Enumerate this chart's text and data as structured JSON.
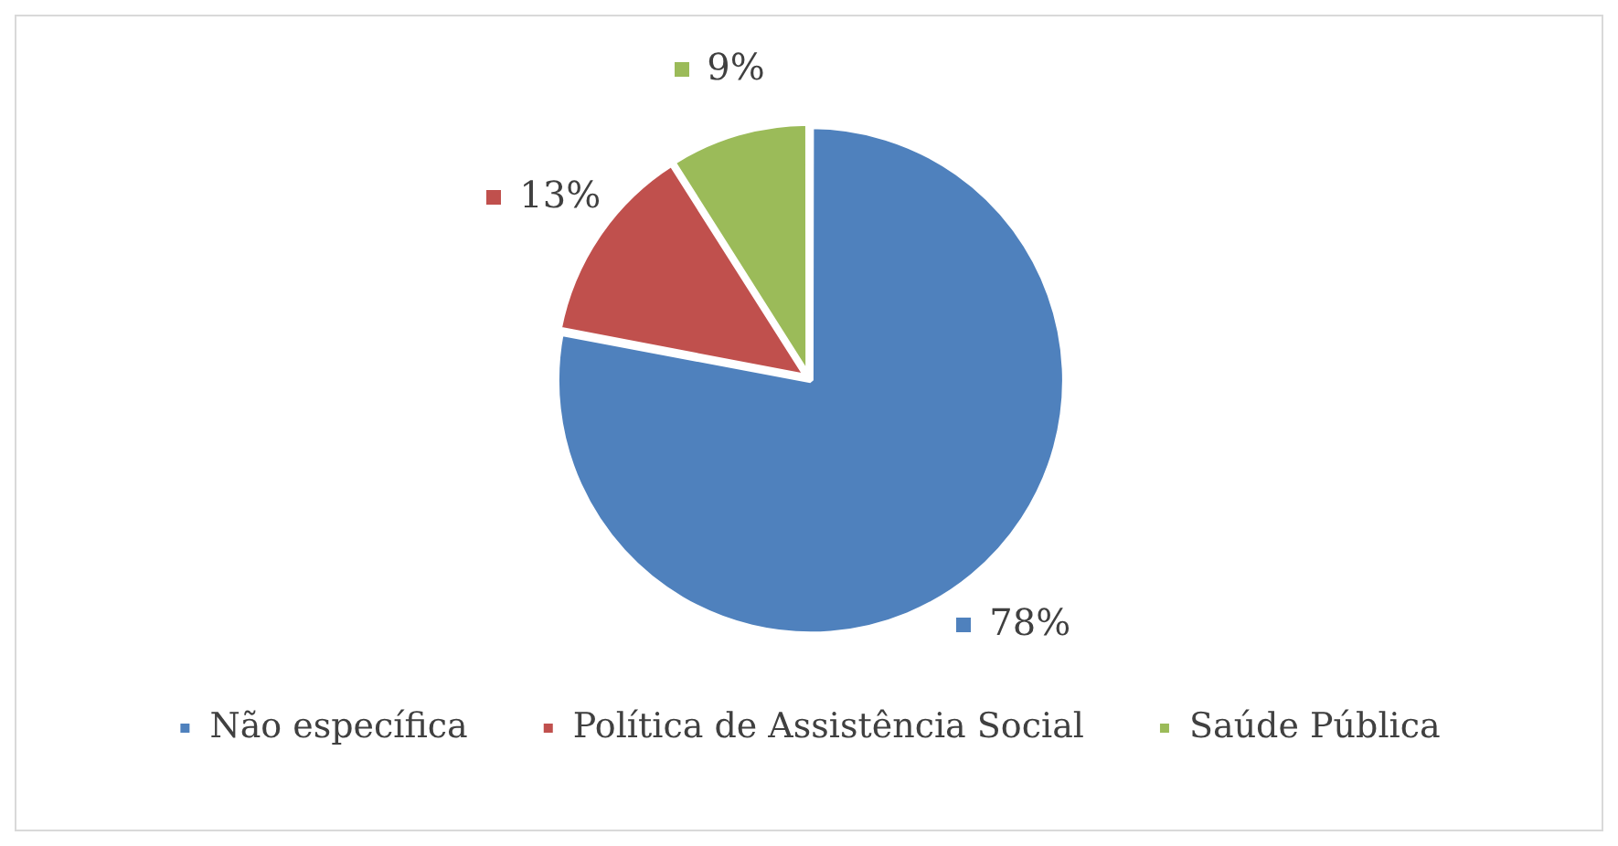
{
  "chart_data": {
    "type": "pie",
    "categories": [
      "Não específica",
      "Política de Assistência Social",
      "Saúde Pública"
    ],
    "values": [
      78,
      13,
      9
    ],
    "colors": [
      "#4f81bd",
      "#c0504d",
      "#9bbb59"
    ],
    "value_labels": [
      "78%",
      "13%",
      "9%"
    ],
    "legend": "bottom"
  }
}
